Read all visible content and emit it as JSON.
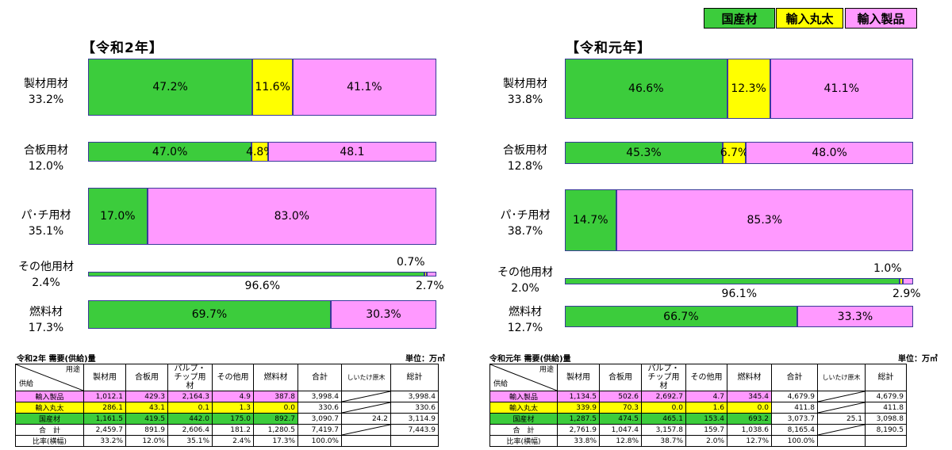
{
  "legend": [
    {
      "label": "国産材",
      "color": "#3ccc3c"
    },
    {
      "label": "輸入丸太",
      "color": "#ffff00"
    },
    {
      "label": "輸入製品",
      "color": "#ff99ff"
    }
  ],
  "chart_data": [
    {
      "type": "bar",
      "title": "【令和2年】",
      "categories": [
        {
          "name": "製材用材",
          "share": "33.2%"
        },
        {
          "name": "合板用材",
          "share": "12.0%"
        },
        {
          "name": "パ･チ用材",
          "share": "35.1%"
        },
        {
          "name": "その他用材",
          "share": "2.4%"
        },
        {
          "name": "燃料材",
          "share": "17.3%"
        }
      ],
      "series": [
        {
          "name": "国産材",
          "values": [
            47.2,
            47.0,
            17.0,
            96.6,
            69.7
          ]
        },
        {
          "name": "輸入丸太",
          "values": [
            11.6,
            4.8,
            0.0,
            0.7,
            0.0
          ]
        },
        {
          "name": "輸入製品",
          "values": [
            41.1,
            48.1,
            83.0,
            2.7,
            30.3
          ]
        }
      ],
      "labels": [
        [
          "47.2%",
          "11.6%",
          "41.1%"
        ],
        [
          "47.0%",
          "4.8%",
          "48.1"
        ],
        [
          "17.0%",
          "",
          "83.0%"
        ],
        [
          "96.6%",
          "0.7%",
          "2.7%"
        ],
        [
          "69.7%",
          "",
          "30.3%"
        ]
      ]
    },
    {
      "type": "bar",
      "title": "【令和元年】",
      "categories": [
        {
          "name": "製材用材",
          "share": "33.8%"
        },
        {
          "name": "合板用材",
          "share": "12.8%"
        },
        {
          "name": "パ･チ用材",
          "share": "38.7%"
        },
        {
          "name": "その他用材",
          "share": "2.0%"
        },
        {
          "name": "燃料材",
          "share": "12.7%"
        }
      ],
      "series": [
        {
          "name": "国産材",
          "values": [
            46.6,
            45.3,
            14.7,
            96.1,
            66.7
          ]
        },
        {
          "name": "輸入丸太",
          "values": [
            12.3,
            6.7,
            0.0,
            1.0,
            0.0
          ]
        },
        {
          "name": "輸入製品",
          "values": [
            41.1,
            48.0,
            85.3,
            2.9,
            33.3
          ]
        }
      ],
      "labels": [
        [
          "46.6%",
          "12.3%",
          "41.1%"
        ],
        [
          "45.3%",
          "6.7%",
          "48.0%"
        ],
        [
          "14.7%",
          "",
          "85.3%"
        ],
        [
          "96.1%",
          "1.0%",
          "2.9%"
        ],
        [
          "66.7%",
          "",
          "33.3%"
        ]
      ]
    }
  ],
  "tables": [
    {
      "title": "令和2年 需要(供給)量",
      "unit": "単位：万㎥",
      "corner_top": "用途",
      "corner_bottom": "供給",
      "headers": [
        "製材用",
        "合板用",
        "パルプ・\nチップ用材",
        "その他用",
        "燃料材",
        "合計",
        "しいたけ原木",
        "総計"
      ],
      "rows": [
        {
          "label": "輸入製品",
          "color": "#ff99ff",
          "cells": [
            "1,012.1",
            "429.3",
            "2,164.3",
            "4.9",
            "387.8",
            "3,998.4",
            "",
            "3,998.4"
          ]
        },
        {
          "label": "輸入丸太",
          "color": "#ffff00",
          "cells": [
            "286.1",
            "43.1",
            "0.1",
            "1.3",
            "0.0",
            "330.6",
            "",
            "330.6"
          ]
        },
        {
          "label": "国産材",
          "color": "#3ccc3c",
          "cells": [
            "1,161.5",
            "419.5",
            "442.0",
            "175.0",
            "892.7",
            "3,090.7",
            "24.2",
            "3,114.9"
          ]
        },
        {
          "label": "合　計",
          "color": "#ffffff",
          "cells": [
            "2,459.7",
            "891.9",
            "2,606.4",
            "181.2",
            "1,280.5",
            "7,419.7",
            "",
            "7,443.9"
          ]
        },
        {
          "label": "比率(横幅)",
          "color": "#ffffff",
          "cells": [
            "33.2%",
            "12.0%",
            "35.1%",
            "2.4%",
            "17.3%",
            "100.0%",
            "",
            ""
          ]
        }
      ]
    },
    {
      "title": "令和元年 需要(供給)量",
      "unit": "単位：万㎥",
      "corner_top": "用途",
      "corner_bottom": "供給",
      "headers": [
        "製材用",
        "合板用",
        "パルプ・\nチップ用材",
        "その他用",
        "燃料材",
        "合計",
        "しいたけ原木",
        "総計"
      ],
      "rows": [
        {
          "label": "輸入製品",
          "color": "#ff99ff",
          "cells": [
            "1,134.5",
            "502.6",
            "2,692.7",
            "4.7",
            "345.4",
            "4,679.9",
            "",
            "4,679.9"
          ]
        },
        {
          "label": "輸入丸太",
          "color": "#ffff00",
          "cells": [
            "339.9",
            "70.3",
            "0.0",
            "1.6",
            "0.0",
            "411.8",
            "",
            "411.8"
          ]
        },
        {
          "label": "国産材",
          "color": "#3ccc3c",
          "cells": [
            "1,287.5",
            "474.5",
            "465.1",
            "153.4",
            "693.2",
            "3,073.7",
            "25.1",
            "3,098.8"
          ]
        },
        {
          "label": "合　計",
          "color": "#ffffff",
          "cells": [
            "2,761.9",
            "1,047.4",
            "3,157.8",
            "159.7",
            "1,038.6",
            "8,165.4",
            "",
            "8,190.5"
          ]
        },
        {
          "label": "比率(横幅)",
          "color": "#ffffff",
          "cells": [
            "33.8%",
            "12.8%",
            "38.7%",
            "2.0%",
            "12.7%",
            "100.0%",
            "",
            ""
          ]
        }
      ]
    }
  ]
}
